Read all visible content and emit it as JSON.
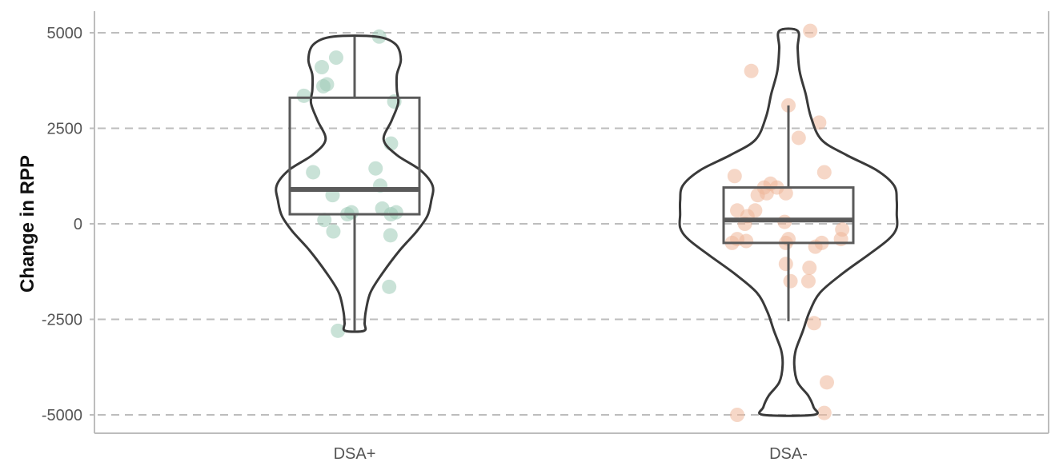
{
  "chart_data": {
    "type": "violin",
    "title": "",
    "xlabel": "",
    "ylabel": "Change in RPP",
    "ylim": [
      -5500,
      5600
    ],
    "yticks": [
      5000,
      2500,
      0,
      -2500,
      -5000
    ],
    "ytick_labels": [
      "5000",
      "2500",
      "0",
      "-2500",
      "-5000"
    ],
    "grid": "horizontal-dashed",
    "legend": "none",
    "categories": [
      "DSA+",
      "DSA-"
    ],
    "groups": [
      {
        "name": "DSA+",
        "color": "#9ccbb6",
        "violin": {
          "min": -2800,
          "max": 4900
        },
        "box": {
          "q1": 250,
          "median": 900,
          "q3": 3300,
          "whisker_low": -2800,
          "whisker_high": 4900
        },
        "points": [
          {
            "x": 0.96,
            "y": 4900
          },
          {
            "x": -0.72,
            "y": 4350
          },
          {
            "x": -1.28,
            "y": 4100
          },
          {
            "x": -1.22,
            "y": 3600
          },
          {
            "x": -1.08,
            "y": 3650
          },
          {
            "x": -1.98,
            "y": 3350
          },
          {
            "x": 1.55,
            "y": 3200
          },
          {
            "x": 1.42,
            "y": 2100
          },
          {
            "x": -1.62,
            "y": 1350
          },
          {
            "x": 0.82,
            "y": 1450
          },
          {
            "x": 1.0,
            "y": 1000
          },
          {
            "x": -0.86,
            "y": 750
          },
          {
            "x": 1.08,
            "y": 400
          },
          {
            "x": 1.62,
            "y": 300
          },
          {
            "x": 1.42,
            "y": 250
          },
          {
            "x": -0.12,
            "y": 300
          },
          {
            "x": -0.28,
            "y": 250
          },
          {
            "x": -1.18,
            "y": 100
          },
          {
            "x": -0.83,
            "y": -200
          },
          {
            "x": 1.4,
            "y": -300
          },
          {
            "x": 1.35,
            "y": -1650
          },
          {
            "x": -0.65,
            "y": -2800
          }
        ]
      },
      {
        "name": "DSA-",
        "color": "#eeb699",
        "violin": {
          "min": -5000,
          "max": 5050
        },
        "box": {
          "q1": -500,
          "median": 100,
          "q3": 950,
          "whisker_low": -2550,
          "whisker_high": 3100
        },
        "points": [
          {
            "x": 0.85,
            "y": 5050
          },
          {
            "x": -1.45,
            "y": 4000
          },
          {
            "x": 0.0,
            "y": 3100
          },
          {
            "x": 1.2,
            "y": 2650
          },
          {
            "x": 0.4,
            "y": 2250
          },
          {
            "x": 1.4,
            "y": 1350
          },
          {
            "x": -2.1,
            "y": 1250
          },
          {
            "x": -0.7,
            "y": 1050
          },
          {
            "x": -0.95,
            "y": 950
          },
          {
            "x": -0.45,
            "y": 950
          },
          {
            "x": -1.2,
            "y": 750
          },
          {
            "x": -0.85,
            "y": 800
          },
          {
            "x": -0.1,
            "y": 800
          },
          {
            "x": -2.0,
            "y": 350
          },
          {
            "x": -1.3,
            "y": 350
          },
          {
            "x": -1.6,
            "y": 200
          },
          {
            "x": -1.7,
            "y": 0
          },
          {
            "x": -0.15,
            "y": 50
          },
          {
            "x": 2.1,
            "y": -150
          },
          {
            "x": 2.05,
            "y": -400
          },
          {
            "x": -1.65,
            "y": -450
          },
          {
            "x": -2.0,
            "y": -400
          },
          {
            "x": -2.2,
            "y": -500
          },
          {
            "x": 0.0,
            "y": -400
          },
          {
            "x": -0.1,
            "y": -500
          },
          {
            "x": 1.3,
            "y": -500
          },
          {
            "x": 1.05,
            "y": -600
          },
          {
            "x": -0.1,
            "y": -1050
          },
          {
            "x": 0.82,
            "y": -1150
          },
          {
            "x": 0.08,
            "y": -1500
          },
          {
            "x": 0.78,
            "y": -1500
          },
          {
            "x": 1.0,
            "y": -2600
          },
          {
            "x": 1.5,
            "y": -4150
          },
          {
            "x": -2.0,
            "y": -5000
          },
          {
            "x": 1.4,
            "y": -4950
          }
        ]
      }
    ]
  }
}
